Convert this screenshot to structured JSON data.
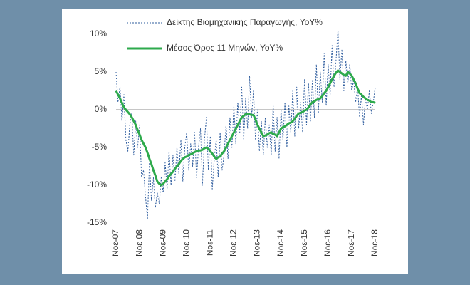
{
  "chart_data": {
    "type": "line",
    "categories": [
      "Νοε-07",
      null,
      null,
      null,
      null,
      null,
      null,
      null,
      null,
      null,
      null,
      null,
      "Νοε-08",
      null,
      null,
      null,
      null,
      null,
      null,
      null,
      null,
      null,
      null,
      null,
      "Νοε-09",
      null,
      null,
      null,
      null,
      null,
      null,
      null,
      null,
      null,
      null,
      null,
      "Νοε-10",
      null,
      null,
      null,
      null,
      null,
      null,
      null,
      null,
      null,
      null,
      null,
      "Νοε-11",
      null,
      null,
      null,
      null,
      null,
      null,
      null,
      null,
      null,
      null,
      null,
      "Νοε-12",
      null,
      null,
      null,
      null,
      null,
      null,
      null,
      null,
      null,
      null,
      null,
      "Νοε-13",
      null,
      null,
      null,
      null,
      null,
      null,
      null,
      null,
      null,
      null,
      null,
      "Νοε-14",
      null,
      null,
      null,
      null,
      null,
      null,
      null,
      null,
      null,
      null,
      null,
      "Νοε-15",
      null,
      null,
      null,
      null,
      null,
      null,
      null,
      null,
      null,
      null,
      null,
      "Νοε-16",
      null,
      null,
      null,
      null,
      null,
      null,
      null,
      null,
      null,
      null,
      null,
      "Νοε-17",
      null,
      null,
      null,
      null,
      null,
      null,
      null,
      null,
      null,
      null,
      null,
      "Νοε-18"
    ],
    "series": [
      {
        "name": "Δείκτης Βιομηχανικής Παραγωγής, YoY%",
        "color": "#2f5d9e",
        "line_style": "dashed",
        "values": [
          5.0,
          1.0,
          3.0,
          -1.5,
          2.0,
          -4.0,
          -5.5,
          -2.0,
          -0.5,
          -6.0,
          -1.5,
          -5.0,
          -2.0,
          -9.0,
          -8.0,
          -11.5,
          -14.5,
          -7.0,
          -12.0,
          -9.0,
          -13.0,
          -11.0,
          -12.5,
          -9.0,
          -11.0,
          -7.0,
          -10.5,
          -5.5,
          -10.0,
          -6.0,
          -9.5,
          -5.0,
          -8.5,
          -4.0,
          -9.5,
          -5.0,
          -3.0,
          -8.0,
          -4.5,
          -7.5,
          -3.0,
          -9.0,
          -5.0,
          -2.5,
          -10.0,
          -4.0,
          -1.0,
          -8.0,
          -3.5,
          -10.5,
          -6.5,
          -4.0,
          -9.0,
          -3.0,
          -8.0,
          -6.0,
          -2.0,
          -6.5,
          -1.0,
          -5.0,
          0.5,
          -4.5,
          1.0,
          -3.0,
          3.0,
          -4.0,
          1.5,
          -2.5,
          4.5,
          -1.0,
          2.5,
          -4.0,
          0.0,
          -5.5,
          -1.5,
          -6.0,
          -1.0,
          -5.0,
          -2.0,
          -6.0,
          0.5,
          -5.5,
          -1.0,
          -6.5,
          0.0,
          -4.0,
          1.0,
          -5.0,
          0.5,
          -3.0,
          2.5,
          -3.5,
          3.0,
          -2.5,
          1.0,
          -3.0,
          4.0,
          -2.0,
          3.5,
          -1.5,
          4.0,
          -1.0,
          6.0,
          -0.5,
          5.0,
          1.0,
          7.5,
          0.5,
          6.0,
          2.0,
          8.5,
          3.0,
          6.5,
          10.5,
          4.0,
          8.0,
          2.5,
          6.5,
          3.5,
          6.0,
          2.5,
          4.0,
          1.0,
          3.0,
          -1.0,
          2.0,
          -2.0,
          1.5,
          0.0,
          2.5,
          -0.5,
          1.0,
          3.0
        ]
      },
      {
        "name": "Μέσος Όρος 11 Μηνών, YoY%",
        "color": "#2eaa4c",
        "line_style": "solid",
        "values": [
          2.5,
          2.0,
          1.5,
          0.9,
          0.3,
          0,
          -0.3,
          -0.6,
          -1,
          -1.5,
          -2,
          -2.7,
          -3.3,
          -4,
          -4.5,
          -5,
          -5.7,
          -6.5,
          -7.2,
          -8,
          -8.7,
          -9.5,
          -9.8,
          -10,
          -9.8,
          -9.5,
          -9.2,
          -8.8,
          -8.5,
          -8.2,
          -7.8,
          -7.5,
          -7.2,
          -6.8,
          -6.5,
          -6.3,
          -6.2,
          -6,
          -5.9,
          -5.8,
          -5.6,
          -5.5,
          -5.4,
          -5.4,
          -5.3,
          -5.1,
          -5,
          -5.2,
          -5.5,
          -5.8,
          -6.2,
          -6.5,
          -6.3,
          -6.2,
          -5.8,
          -5.5,
          -5,
          -4.5,
          -4,
          -3.5,
          -3,
          -2.5,
          -2,
          -1.5,
          -1,
          -0.8,
          -0.6,
          -0.6,
          -0.6,
          -0.7,
          -0.7,
          -1.3,
          -2,
          -2.5,
          -3,
          -3.5,
          -3.4,
          -3.3,
          -3.1,
          -3,
          -3.2,
          -3.3,
          -3.5,
          -3,
          -2.5,
          -2.3,
          -2.2,
          -2,
          -1.8,
          -1.7,
          -1.5,
          -1.2,
          -0.8,
          -0.5,
          -0.4,
          -0.3,
          -0.1,
          0,
          0.3,
          0.7,
          1,
          1.1,
          1.3,
          1.4,
          1.5,
          1.8,
          2.2,
          2.5,
          3,
          3.5,
          4,
          4.5,
          4.9,
          5.2,
          5,
          4.8,
          4.6,
          4.5,
          5,
          4.8,
          4.5,
          4,
          3.5,
          2.8,
          2.2,
          2,
          1.7,
          1.5,
          1.3,
          1.2,
          1,
          1,
          0.9
        ]
      }
    ],
    "ylim": [
      -15,
      12.5
    ],
    "yticks": [
      {
        "value": -15,
        "label": "-15%"
      },
      {
        "value": -10,
        "label": "-10%"
      },
      {
        "value": -5,
        "label": "-5%"
      },
      {
        "value": 0,
        "label": "0%"
      },
      {
        "value": 5,
        "label": "5%"
      },
      {
        "value": 10,
        "label": "10%"
      }
    ],
    "grid": false,
    "legend": "upper left"
  }
}
